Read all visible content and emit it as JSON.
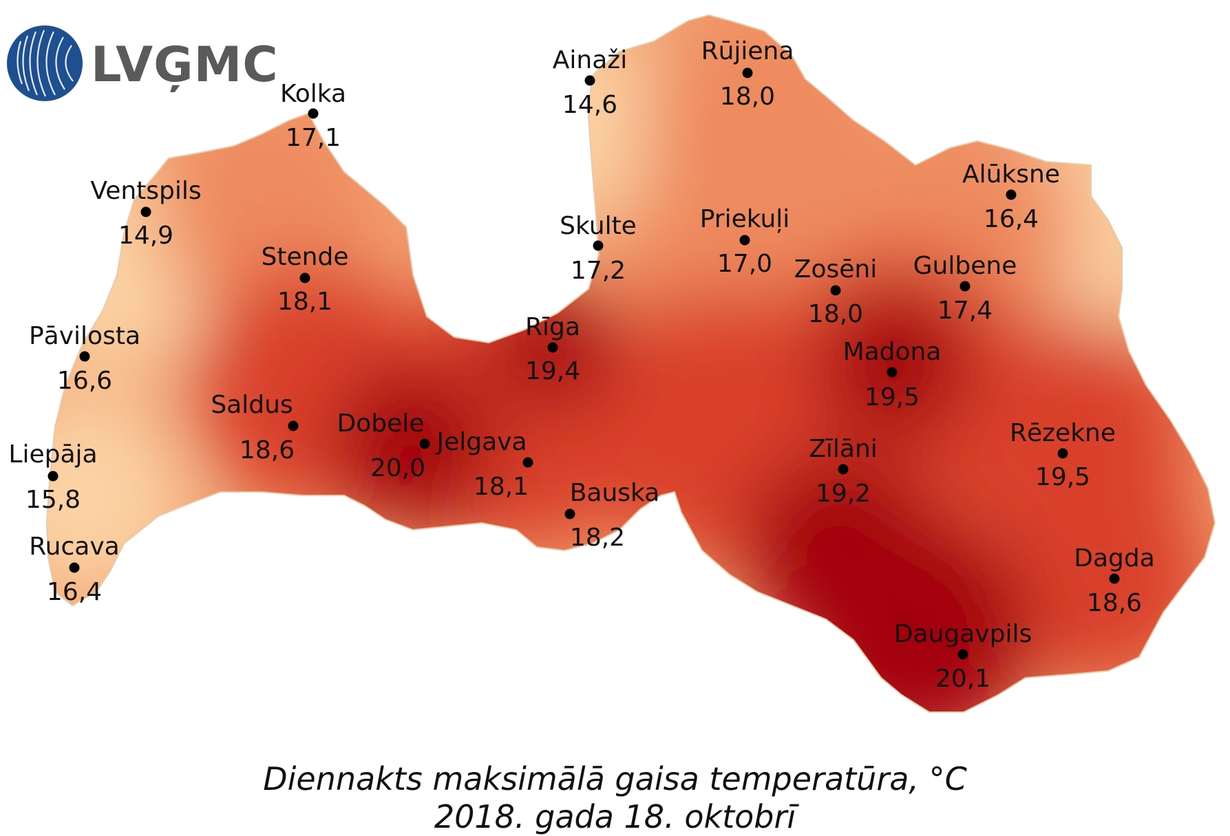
{
  "logo": {
    "text": "LVĢMC",
    "color": "#1d4f91"
  },
  "caption": {
    "line1": "Diennakts maksimālā gaisa temperatūra, °C",
    "line2": "2018. gada 18. oktobrī"
  },
  "colors": {
    "cool": "#fbd3a4",
    "mid": "#ee8a5f",
    "warm": "#d9412a",
    "hot": "#a3000a",
    "dot": "#000000"
  },
  "stations": [
    {
      "name": "Kolka",
      "value": "17,1"
    },
    {
      "name": "Ventspils",
      "value": "14,9"
    },
    {
      "name": "Stende",
      "value": "18,1"
    },
    {
      "name": "Pāvilosta",
      "value": "16,6"
    },
    {
      "name": "Saldus",
      "value": "18,6"
    },
    {
      "name": "Liepāja",
      "value": "15,8"
    },
    {
      "name": "Rucava",
      "value": "16,4"
    },
    {
      "name": "Dobele",
      "value": "20,0"
    },
    {
      "name": "Jelgava",
      "value": "18,1"
    },
    {
      "name": "Bauska",
      "value": "18,2"
    },
    {
      "name": "Rīga",
      "value": "19,4"
    },
    {
      "name": "Skulte",
      "value": "17,2"
    },
    {
      "name": "Ainaži",
      "value": "14,6"
    },
    {
      "name": "Rūjiena",
      "value": "18,0"
    },
    {
      "name": "Priekuļi",
      "value": "17,0"
    },
    {
      "name": "Alūksne",
      "value": "16,4"
    },
    {
      "name": "Zosēni",
      "value": "18,0"
    },
    {
      "name": "Gulbene",
      "value": "17,4"
    },
    {
      "name": "Madona",
      "value": "19,5"
    },
    {
      "name": "Zīlāni",
      "value": "19,2"
    },
    {
      "name": "Rēzekne",
      "value": "19,5"
    },
    {
      "name": "Dagda",
      "value": "18,6"
    },
    {
      "name": "Daugavpils",
      "value": "20,1"
    }
  ]
}
